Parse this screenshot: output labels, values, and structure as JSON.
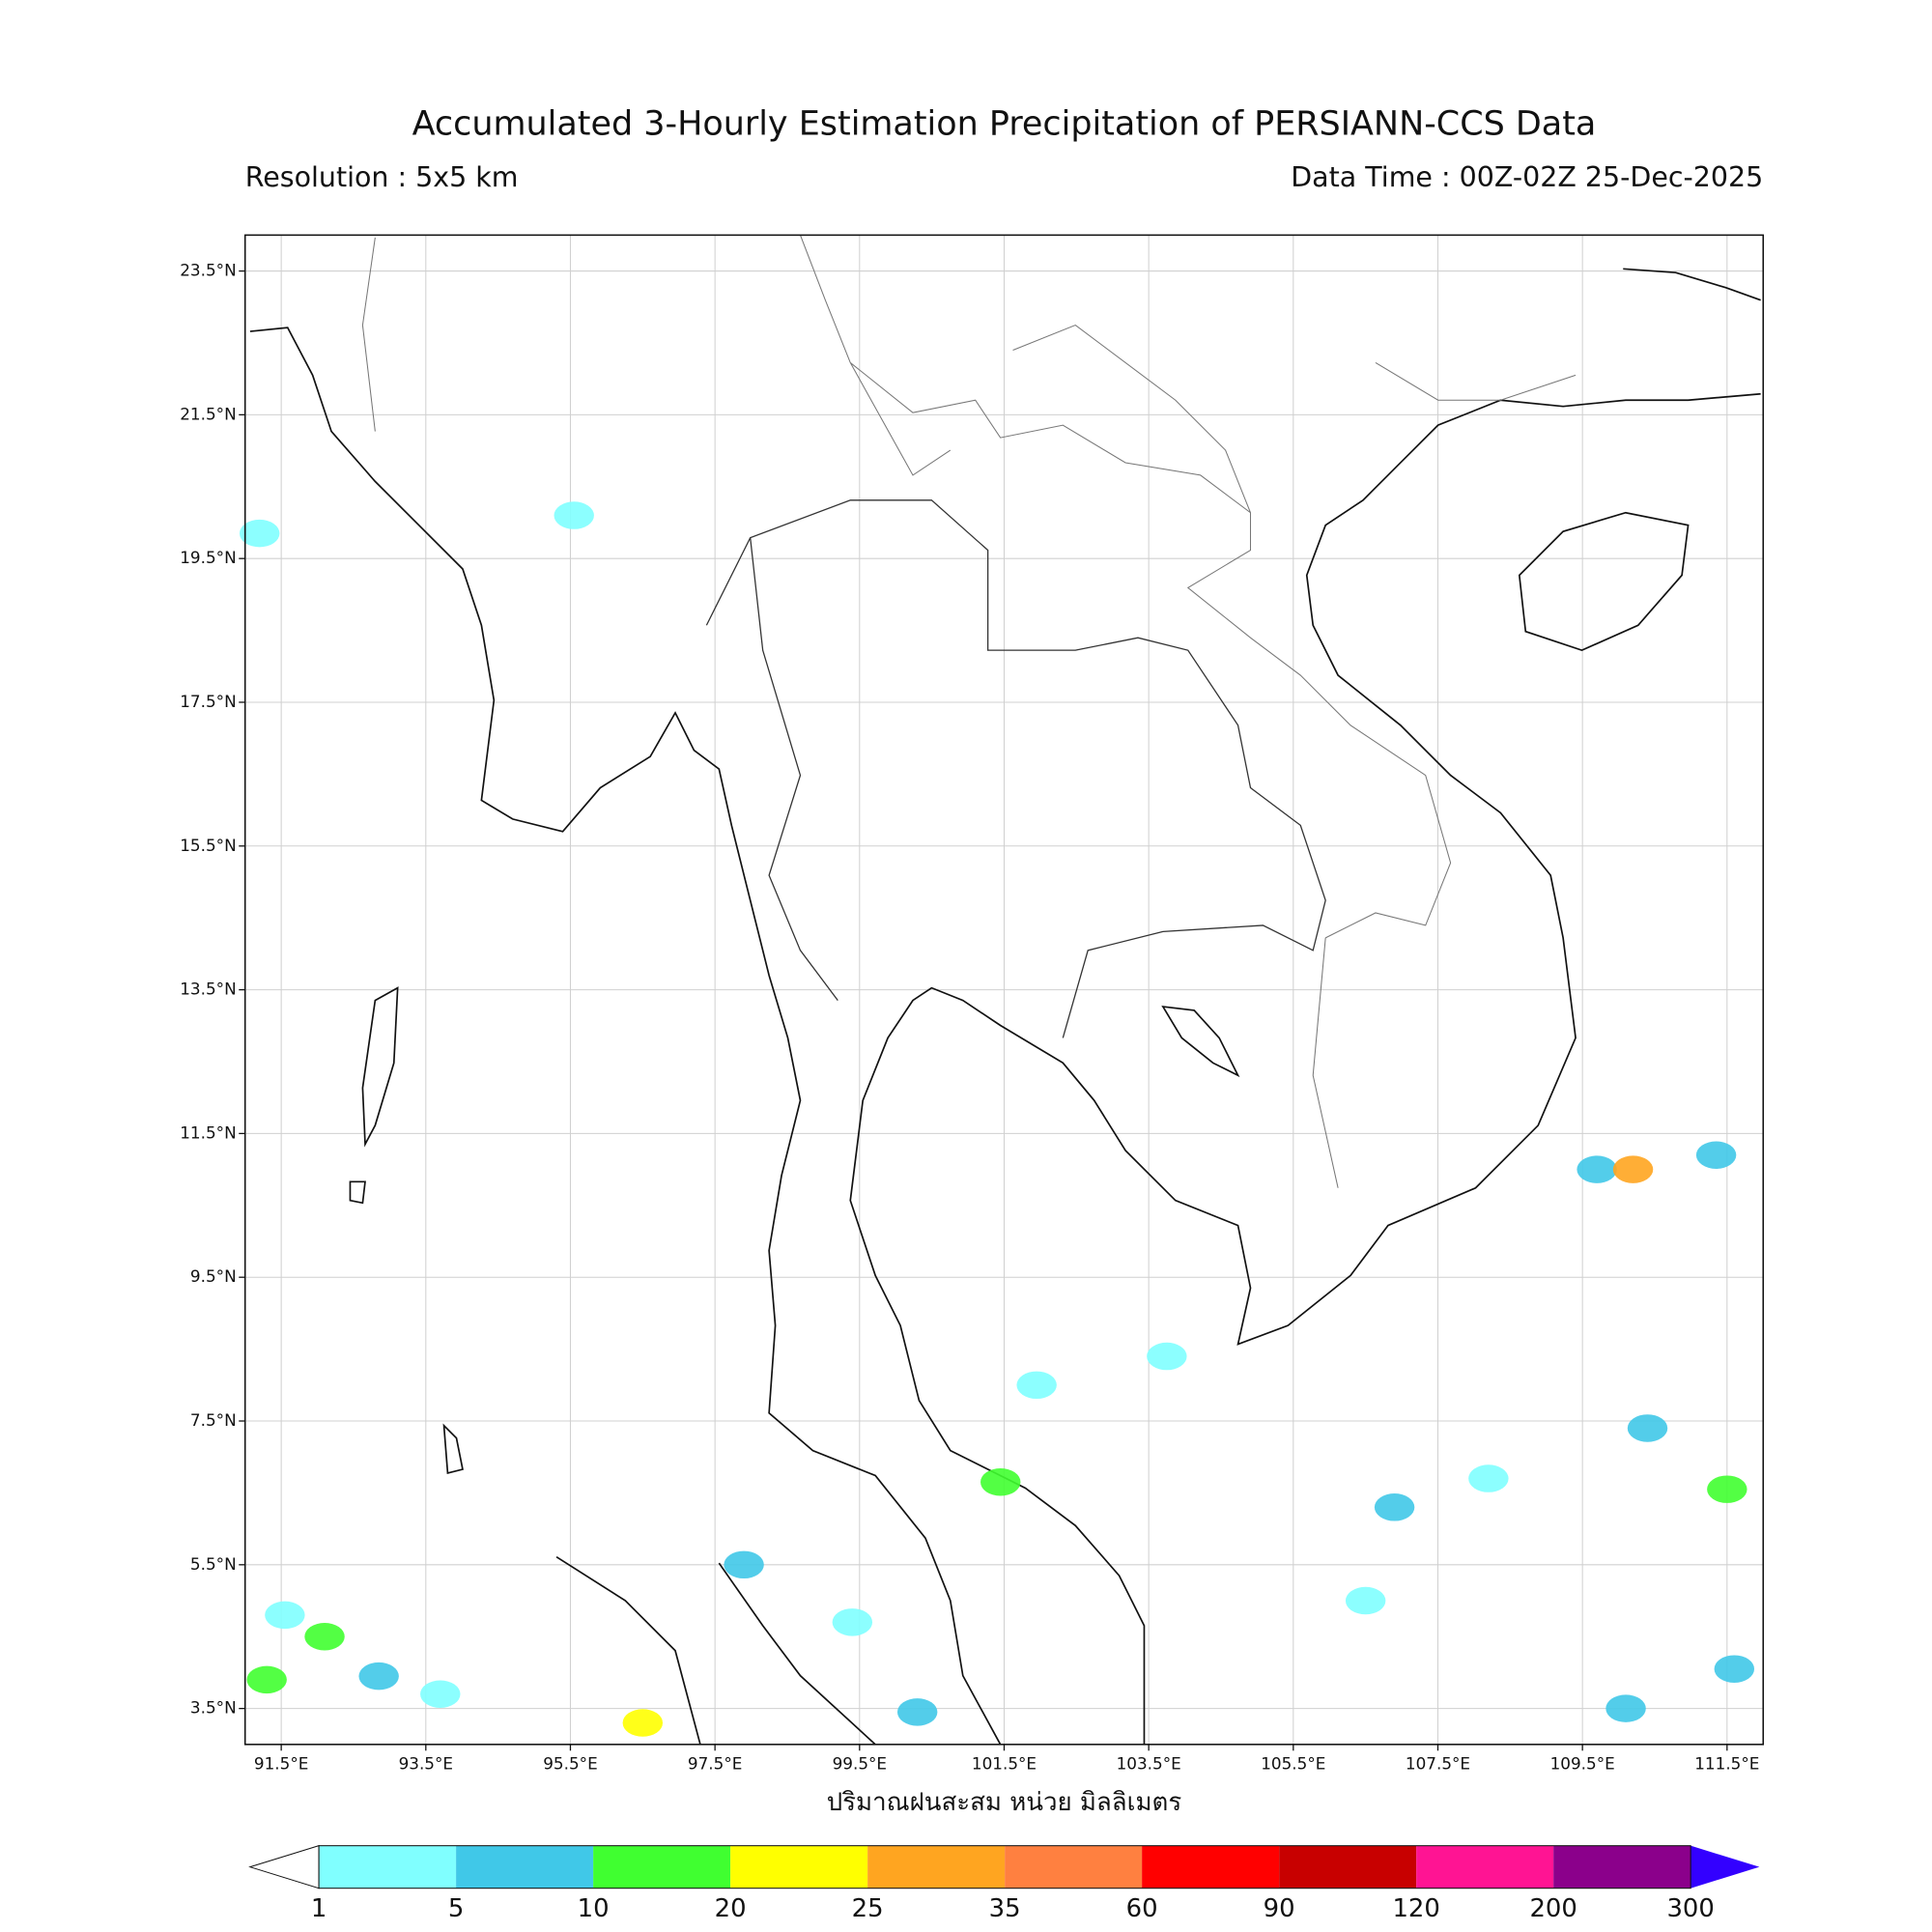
{
  "header": {
    "title": "Accumulated 3-Hourly Estimation Precipitation of PERSIANN-CCS Data",
    "resolution": "Resolution : 5x5 km",
    "data_time": "Data Time : 00Z-02Z 25-Dec-2025"
  },
  "map": {
    "xlabel": "ปริมาณฝนสะสม หน่วย มิลลิเมตร",
    "xlim": [
      91,
      112
    ],
    "ylim": [
      3,
      24
    ],
    "grid": true,
    "xticks": [
      {
        "value": 91.5,
        "label": "91.5°E"
      },
      {
        "value": 93.5,
        "label": "93.5°E"
      },
      {
        "value": 95.5,
        "label": "95.5°E"
      },
      {
        "value": 97.5,
        "label": "97.5°E"
      },
      {
        "value": 99.5,
        "label": "99.5°E"
      },
      {
        "value": 101.5,
        "label": "101.5°E"
      },
      {
        "value": 103.5,
        "label": "103.5°E"
      },
      {
        "value": 105.5,
        "label": "105.5°E"
      },
      {
        "value": 107.5,
        "label": "107.5°E"
      },
      {
        "value": 109.5,
        "label": "109.5°E"
      },
      {
        "value": 111.5,
        "label": "111.5°E"
      }
    ],
    "yticks": [
      {
        "value": 3.5,
        "label": "3.5°N"
      },
      {
        "value": 5.5,
        "label": "5.5°N"
      },
      {
        "value": 7.5,
        "label": "7.5°N"
      },
      {
        "value": 9.5,
        "label": "9.5°N"
      },
      {
        "value": 11.5,
        "label": "11.5°N"
      },
      {
        "value": 13.5,
        "label": "13.5°N"
      },
      {
        "value": 15.5,
        "label": "15.5°N"
      },
      {
        "value": 17.5,
        "label": "17.5°N"
      },
      {
        "value": 19.5,
        "label": "19.5°N"
      },
      {
        "value": 21.5,
        "label": "21.5°N"
      },
      {
        "value": 23.5,
        "label": "23.5°N"
      }
    ],
    "rain_cells": [
      {
        "lon": 91.3,
        "lat": 3.9,
        "mm": 12
      },
      {
        "lon": 91.55,
        "lat": 4.8,
        "mm": 4
      },
      {
        "lon": 92.1,
        "lat": 4.5,
        "mm": 15
      },
      {
        "lon": 92.85,
        "lat": 3.95,
        "mm": 6
      },
      {
        "lon": 93.7,
        "lat": 3.7,
        "mm": 3
      },
      {
        "lon": 96.5,
        "lat": 3.3,
        "mm": 22
      },
      {
        "lon": 97.9,
        "lat": 5.5,
        "mm": 8
      },
      {
        "lon": 99.4,
        "lat": 4.7,
        "mm": 4
      },
      {
        "lon": 100.3,
        "lat": 3.45,
        "mm": 6
      },
      {
        "lon": 101.45,
        "lat": 6.65,
        "mm": 10
      },
      {
        "lon": 101.95,
        "lat": 8.0,
        "mm": 2
      },
      {
        "lon": 103.75,
        "lat": 8.4,
        "mm": 2
      },
      {
        "lon": 106.9,
        "lat": 6.3,
        "mm": 6
      },
      {
        "lon": 109.7,
        "lat": 11.0,
        "mm": 8
      },
      {
        "lon": 110.2,
        "lat": 11.0,
        "mm": 30
      },
      {
        "lon": 111.35,
        "lat": 11.2,
        "mm": 5
      },
      {
        "lon": 110.4,
        "lat": 7.4,
        "mm": 6
      },
      {
        "lon": 110.1,
        "lat": 3.5,
        "mm": 6
      },
      {
        "lon": 111.6,
        "lat": 4.05,
        "mm": 5
      },
      {
        "lon": 111.5,
        "lat": 6.55,
        "mm": 10
      },
      {
        "lon": 108.2,
        "lat": 6.7,
        "mm": 2
      },
      {
        "lon": 106.5,
        "lat": 5.0,
        "mm": 2
      },
      {
        "lon": 95.55,
        "lat": 20.1,
        "mm": 2
      },
      {
        "lon": 91.2,
        "lat": 19.85,
        "mm": 2
      }
    ]
  },
  "colorbar": {
    "levels": [
      1,
      5,
      10,
      20,
      25,
      35,
      60,
      90,
      120,
      200,
      300
    ],
    "colors": [
      "#80ffff",
      "#40c8e8",
      "#40ff30",
      "#ffff00",
      "#ffa520",
      "#ff8040",
      "#ff0000",
      "#c80000",
      "#ff1493",
      "#8b008b"
    ],
    "under_color": "#ffffff",
    "over_color": "#3300ff"
  }
}
